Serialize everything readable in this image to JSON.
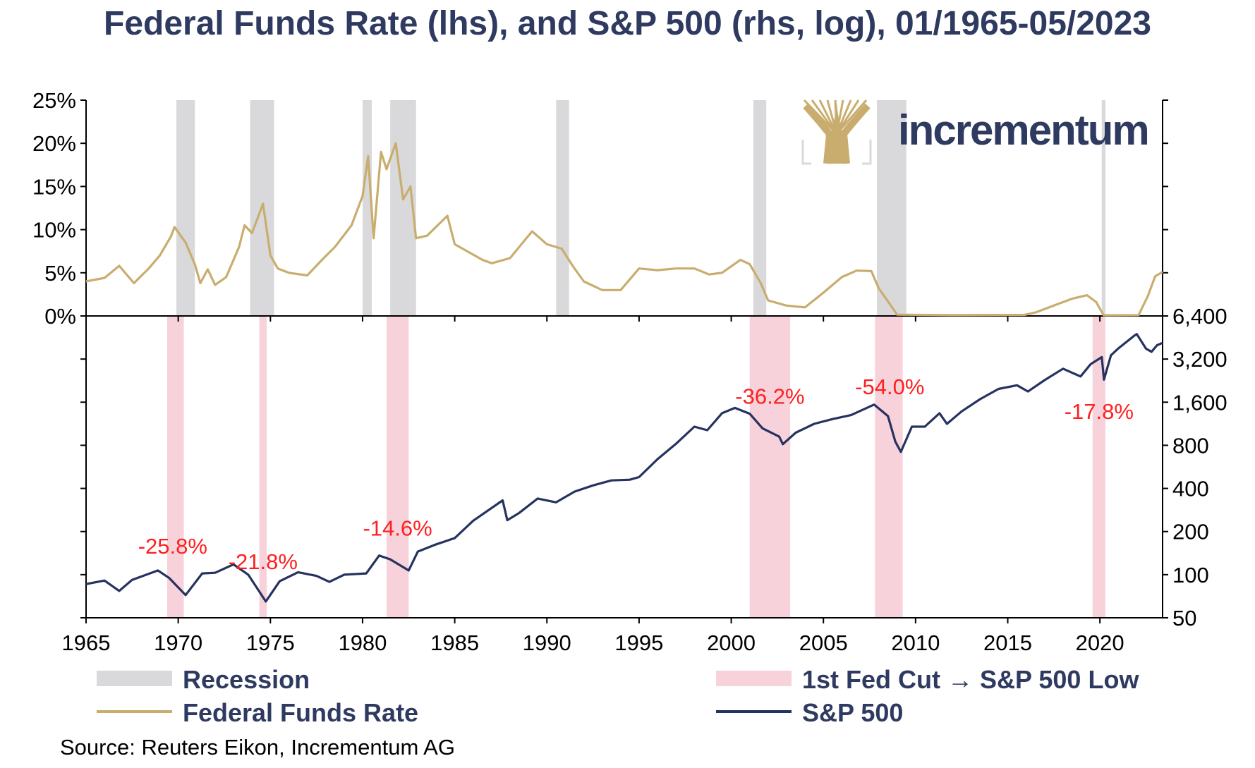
{
  "title": "Federal Funds Rate (lhs), and S&P 500 (rhs, log), 01/1965-05/2023",
  "source": "Source: Reuters Eikon, Incrementum AG",
  "logo_text": "incrementum",
  "colors": {
    "title": "#2f3a60",
    "recession": "#d9d9db",
    "cut_to_low": "#f7d2da",
    "ffr": "#c9ad6e",
    "spx": "#26325f",
    "annotation": "#ff1f1f",
    "logo_gold": "#c9ad6e"
  },
  "legend": [
    {
      "label": "Recession",
      "kind": "band",
      "color": "#d9d9db"
    },
    {
      "label": "1st Fed Cut → S&P 500 Low",
      "kind": "band",
      "color": "#f7d2da"
    },
    {
      "label": "Federal Funds Rate",
      "kind": "line",
      "color": "#c9ad6e"
    },
    {
      "label": "S&P 500",
      "kind": "line",
      "color": "#26325f"
    }
  ],
  "chart_data": [
    {
      "type": "line",
      "panel": "top",
      "ylabel_side": "left",
      "ylim": [
        0,
        25
      ],
      "yticks": [
        "0%",
        "5%",
        "10%",
        "15%",
        "20%",
        "25%"
      ],
      "xlim": [
        1965,
        2023.4
      ],
      "xticks": [
        "1965",
        "1970",
        "1975",
        "1980",
        "1985",
        "1990",
        "1995",
        "2000",
        "2005",
        "2010",
        "2015",
        "2020"
      ],
      "recessions": [
        [
          1969.9,
          1970.9
        ],
        [
          1973.9,
          1975.2
        ],
        [
          1980.0,
          1980.5
        ],
        [
          1981.5,
          1982.9
        ],
        [
          1990.5,
          1991.2
        ],
        [
          2001.2,
          2001.9
        ],
        [
          2007.9,
          2009.5
        ],
        [
          2020.1,
          2020.3
        ]
      ],
      "series": [
        {
          "name": "Federal Funds Rate",
          "unit": "%",
          "points": [
            [
              1965.0,
              4.0
            ],
            [
              1966.0,
              4.4
            ],
            [
              1966.8,
              5.8
            ],
            [
              1967.6,
              3.8
            ],
            [
              1968.4,
              5.5
            ],
            [
              1969.0,
              7.0
            ],
            [
              1969.6,
              9.2
            ],
            [
              1969.8,
              10.3
            ],
            [
              1970.4,
              8.5
            ],
            [
              1970.9,
              6.0
            ],
            [
              1971.2,
              3.8
            ],
            [
              1971.6,
              5.4
            ],
            [
              1972.0,
              3.6
            ],
            [
              1972.6,
              4.5
            ],
            [
              1973.3,
              8.0
            ],
            [
              1973.6,
              10.5
            ],
            [
              1974.0,
              9.6
            ],
            [
              1974.6,
              13.0
            ],
            [
              1975.0,
              7.0
            ],
            [
              1975.4,
              5.5
            ],
            [
              1976.0,
              5.0
            ],
            [
              1977.0,
              4.7
            ],
            [
              1977.8,
              6.5
            ],
            [
              1978.5,
              8.0
            ],
            [
              1979.4,
              10.5
            ],
            [
              1980.0,
              13.9
            ],
            [
              1980.3,
              18.5
            ],
            [
              1980.6,
              9.0
            ],
            [
              1981.0,
              19.0
            ],
            [
              1981.3,
              17.0
            ],
            [
              1981.8,
              20.0
            ],
            [
              1982.2,
              13.5
            ],
            [
              1982.6,
              15.0
            ],
            [
              1982.9,
              9.0
            ],
            [
              1983.5,
              9.3
            ],
            [
              1984.6,
              11.6
            ],
            [
              1985.0,
              8.3
            ],
            [
              1986.5,
              6.5
            ],
            [
              1987.0,
              6.1
            ],
            [
              1988.0,
              6.7
            ],
            [
              1989.2,
              9.8
            ],
            [
              1990.0,
              8.3
            ],
            [
              1990.8,
              7.8
            ],
            [
              1991.4,
              5.8
            ],
            [
              1992.0,
              4.0
            ],
            [
              1993.0,
              3.0
            ],
            [
              1994.0,
              3.0
            ],
            [
              1995.0,
              5.5
            ],
            [
              1996.0,
              5.3
            ],
            [
              1997.0,
              5.5
            ],
            [
              1998.0,
              5.5
            ],
            [
              1998.8,
              4.8
            ],
            [
              1999.5,
              5.0
            ],
            [
              2000.5,
              6.5
            ],
            [
              2001.0,
              6.0
            ],
            [
              2001.6,
              3.8
            ],
            [
              2002.0,
              1.8
            ],
            [
              2003.0,
              1.2
            ],
            [
              2004.0,
              1.0
            ],
            [
              2005.0,
              2.7
            ],
            [
              2006.0,
              4.5
            ],
            [
              2006.8,
              5.25
            ],
            [
              2007.6,
              5.2
            ],
            [
              2008.0,
              3.2
            ],
            [
              2008.4,
              2.0
            ],
            [
              2009.0,
              0.15
            ],
            [
              2012.0,
              0.1
            ],
            [
              2015.9,
              0.12
            ],
            [
              2016.5,
              0.4
            ],
            [
              2017.5,
              1.2
            ],
            [
              2018.5,
              2.0
            ],
            [
              2019.3,
              2.4
            ],
            [
              2019.8,
              1.6
            ],
            [
              2020.2,
              0.08
            ],
            [
              2022.1,
              0.1
            ],
            [
              2022.6,
              2.3
            ],
            [
              2023.0,
              4.6
            ],
            [
              2023.4,
              5.1
            ]
          ]
        }
      ]
    },
    {
      "type": "line",
      "panel": "bottom",
      "yscale": "log",
      "ylabel_side": "right",
      "ylim": [
        50,
        6400
      ],
      "yticks": [
        "50",
        "100",
        "200",
        "400",
        "800",
        "1,600",
        "3,200",
        "6,400"
      ],
      "xlim": [
        1965,
        2023.4
      ],
      "cut_to_low_periods": [
        [
          1969.4,
          1970.3
        ],
        [
          1974.4,
          1974.8
        ],
        [
          1981.3,
          1982.5
        ],
        [
          2001.0,
          2003.2
        ],
        [
          2007.8,
          2009.3
        ],
        [
          2019.6,
          2020.3
        ]
      ],
      "annotations": [
        {
          "text": "-25.8%",
          "x": 1969.7
        },
        {
          "text": "-21.8%",
          "x": 1974.6
        },
        {
          "text": "-14.6%",
          "x": 1981.9
        },
        {
          "text": "-36.2%",
          "x": 2002.1
        },
        {
          "text": "-54.0%",
          "x": 2008.6
        },
        {
          "text": "-17.8%",
          "x": 2019.95
        }
      ],
      "series": [
        {
          "name": "S&P 500",
          "points": [
            [
              1965.0,
              86
            ],
            [
              1966.0,
              91
            ],
            [
              1966.8,
              77
            ],
            [
              1967.5,
              92
            ],
            [
              1968.9,
              107
            ],
            [
              1969.5,
              95
            ],
            [
              1970.4,
              72
            ],
            [
              1971.3,
              102
            ],
            [
              1972.0,
              103
            ],
            [
              1973.0,
              118
            ],
            [
              1973.8,
              100
            ],
            [
              1974.75,
              65
            ],
            [
              1975.5,
              90
            ],
            [
              1976.5,
              104
            ],
            [
              1977.5,
              98
            ],
            [
              1978.2,
              89
            ],
            [
              1979.0,
              100
            ],
            [
              1980.2,
              102
            ],
            [
              1980.9,
              136
            ],
            [
              1981.5,
              128
            ],
            [
              1982.5,
              107
            ],
            [
              1983.0,
              145
            ],
            [
              1984.0,
              163
            ],
            [
              1985.0,
              180
            ],
            [
              1986.0,
              238
            ],
            [
              1987.6,
              330
            ],
            [
              1987.85,
              240
            ],
            [
              1988.5,
              270
            ],
            [
              1989.5,
              340
            ],
            [
              1990.5,
              320
            ],
            [
              1991.5,
              380
            ],
            [
              1992.5,
              420
            ],
            [
              1993.5,
              455
            ],
            [
              1994.5,
              460
            ],
            [
              1995.0,
              480
            ],
            [
              1996.0,
              640
            ],
            [
              1997.0,
              820
            ],
            [
              1998.0,
              1080
            ],
            [
              1998.7,
              1020
            ],
            [
              1999.5,
              1340
            ],
            [
              2000.2,
              1460
            ],
            [
              2001.0,
              1330
            ],
            [
              2001.7,
              1050
            ],
            [
              2002.6,
              920
            ],
            [
              2002.8,
              815
            ],
            [
              2003.5,
              980
            ],
            [
              2004.5,
              1130
            ],
            [
              2005.5,
              1220
            ],
            [
              2006.5,
              1300
            ],
            [
              2007.75,
              1540
            ],
            [
              2008.5,
              1280
            ],
            [
              2008.9,
              850
            ],
            [
              2009.2,
              720
            ],
            [
              2009.8,
              1080
            ],
            [
              2010.5,
              1080
            ],
            [
              2011.3,
              1340
            ],
            [
              2011.7,
              1130
            ],
            [
              2012.5,
              1380
            ],
            [
              2013.5,
              1680
            ],
            [
              2014.5,
              1980
            ],
            [
              2015.5,
              2100
            ],
            [
              2016.1,
              1900
            ],
            [
              2017.0,
              2280
            ],
            [
              2018.0,
              2740
            ],
            [
              2018.95,
              2420
            ],
            [
              2019.5,
              2950
            ],
            [
              2020.1,
              3300
            ],
            [
              2020.22,
              2300
            ],
            [
              2020.6,
              3400
            ],
            [
              2021.0,
              3800
            ],
            [
              2021.9,
              4700
            ],
            [
              2022.0,
              4780
            ],
            [
              2022.5,
              3780
            ],
            [
              2022.8,
              3600
            ],
            [
              2023.1,
              4000
            ],
            [
              2023.4,
              4150
            ]
          ]
        }
      ]
    }
  ]
}
